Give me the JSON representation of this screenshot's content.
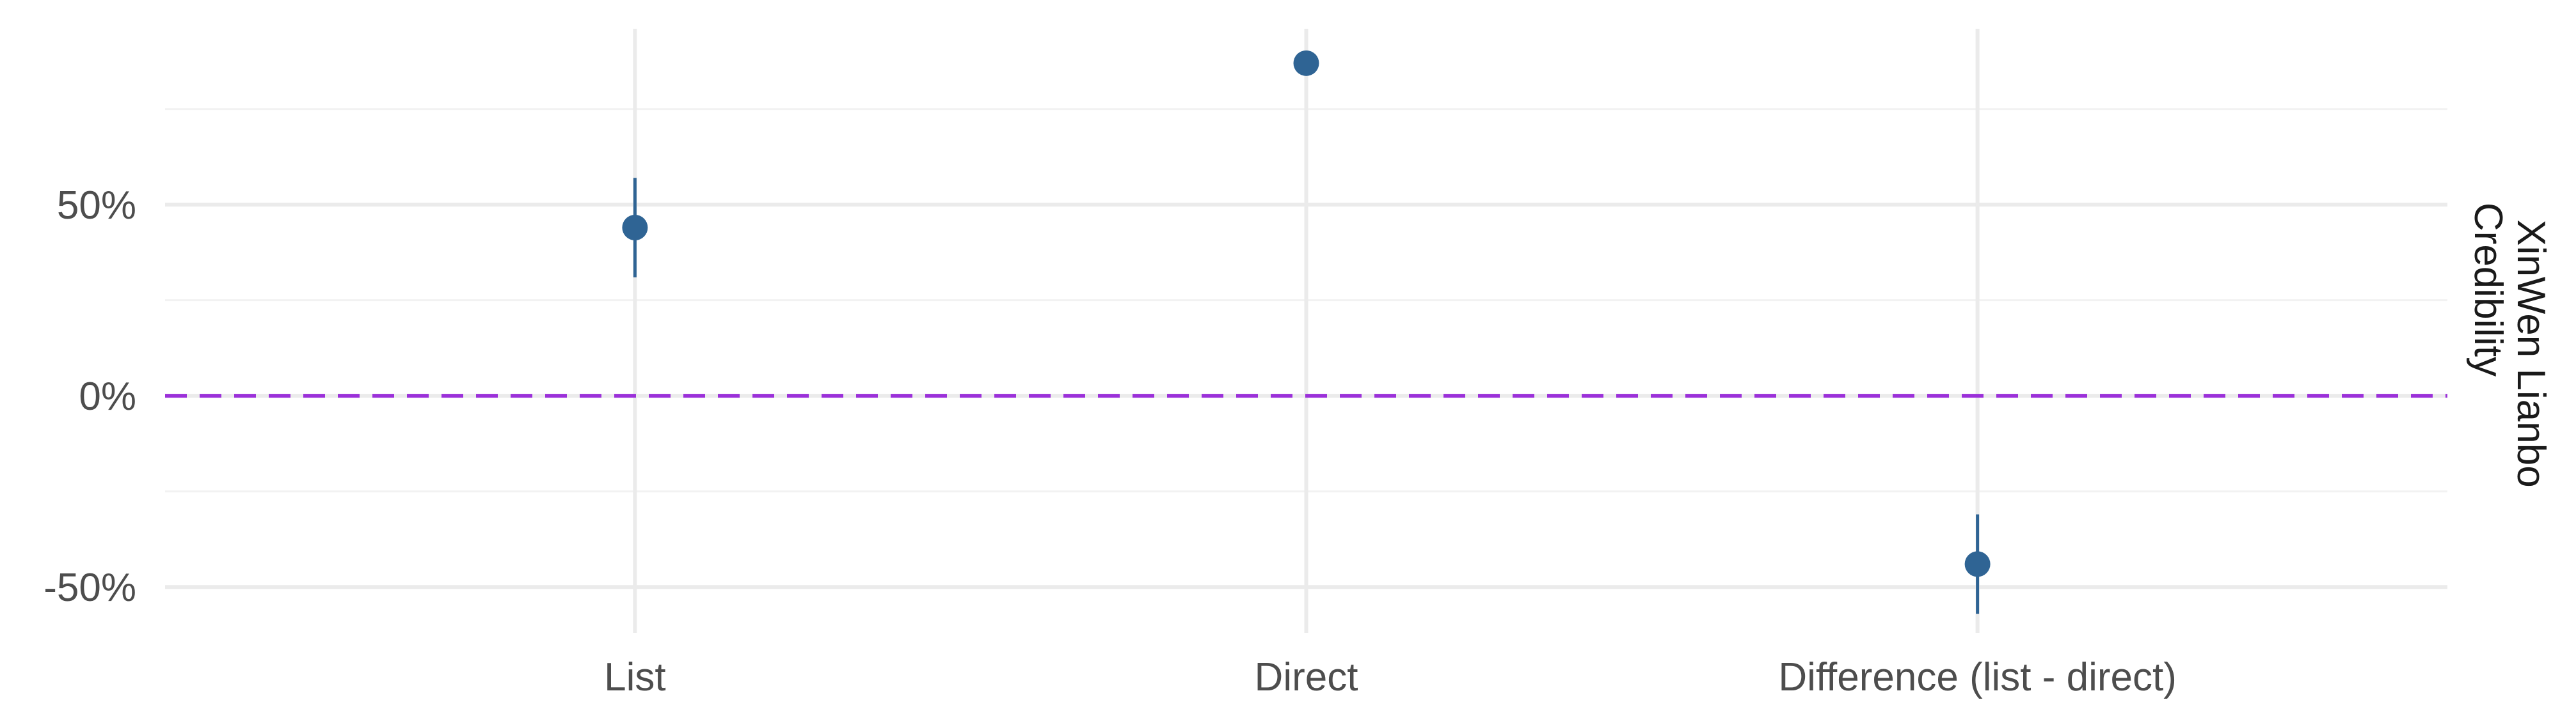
{
  "chart_data": {
    "type": "scatter",
    "subtype": "point-range",
    "title": "",
    "xlabel": "",
    "ylabel": "",
    "facet_label": [
      "XinWen Lianbo",
      "Credibility"
    ],
    "categories": [
      "List",
      "Direct",
      "Difference (list - direct)"
    ],
    "series": [
      {
        "values": [
          0.44,
          0.87,
          -0.44
        ],
        "lower": [
          0.31,
          null,
          -0.57
        ],
        "upper": [
          0.57,
          null,
          -0.31
        ]
      }
    ],
    "ylim": [
      -0.62,
      0.96
    ],
    "yticks": [
      -0.5,
      0,
      0.5
    ],
    "ytick_labels": [
      "-50%",
      "0%",
      "50%"
    ],
    "reference_line": {
      "y": 0,
      "style": "dashed"
    },
    "grid": true,
    "legend": "none"
  },
  "colors": {
    "point": "#2f6494",
    "reference_line": "#9b30d9",
    "grid_major": "#ebebeb",
    "grid_minor": "#f2f2f2",
    "background": "#ffffff"
  }
}
